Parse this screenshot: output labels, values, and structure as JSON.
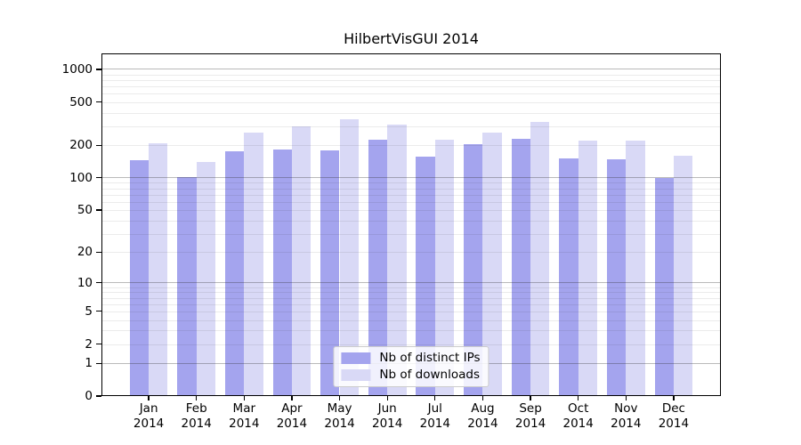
{
  "chart_data": {
    "type": "bar",
    "title": "HilbertVisGUI 2014",
    "categories": [
      "Jan 2014",
      "Feb 2014",
      "Mar 2014",
      "Apr 2014",
      "May 2014",
      "Jun 2014",
      "Jul 2014",
      "Aug 2014",
      "Sep 2014",
      "Oct 2014",
      "Nov 2014",
      "Dec 2014"
    ],
    "series": [
      {
        "name": "Nb of distinct IPs",
        "color": "#a4a4ee",
        "values": [
          145,
          101,
          177,
          184,
          181,
          227,
          158,
          205,
          228,
          150,
          149,
          100
        ]
      },
      {
        "name": "Nb of downloads",
        "color": "#d9d9f6",
        "values": [
          208,
          140,
          262,
          300,
          345,
          310,
          224,
          260,
          330,
          221,
          221,
          160
        ]
      }
    ],
    "yscale": "log1p",
    "yticks": [
      0,
      1,
      2,
      5,
      10,
      20,
      50,
      100,
      200,
      500,
      1000
    ],
    "major_gridlines": [
      1,
      10,
      100,
      1000
    ],
    "ylim": [
      0,
      1400
    ],
    "xlabel": "",
    "ylabel": "",
    "grid": true,
    "legend_position": "lower center",
    "colors": {
      "major_grid": "rgba(40,40,40,0.32)",
      "minor_grid": "rgba(40,40,40,0.095)",
      "spine": "#000000",
      "text": "#000000",
      "legend_border": "#cccccc",
      "legend_bg": "rgba(255,255,255,0.85)"
    }
  }
}
